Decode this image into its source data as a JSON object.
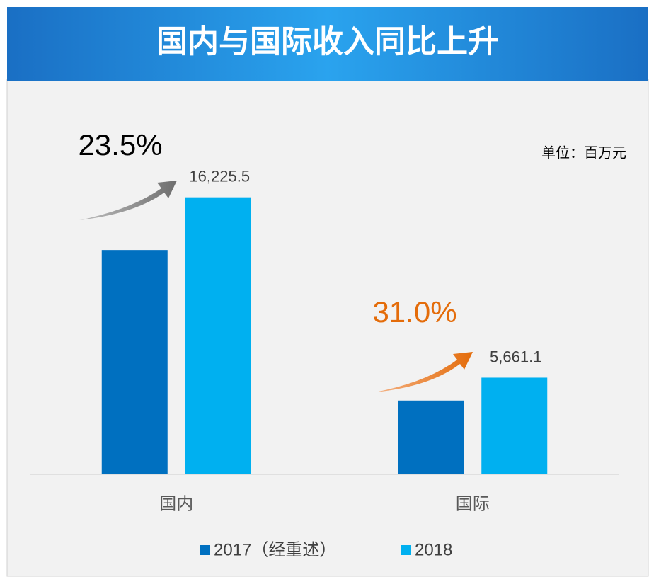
{
  "chart_data": {
    "type": "bar",
    "title": "国内与国际收入同比上升",
    "unit_label": "单位：百万元",
    "categories": [
      "国内",
      "国际"
    ],
    "series": [
      {
        "name": "2017（经重述）",
        "color": "#0070c0",
        "values": [
          13138,
          4321
        ]
      },
      {
        "name": "2018",
        "color": "#00b0f0",
        "values": [
          16225.5,
          5661.1
        ],
        "value_labels": [
          "16,225.5",
          "5,661.1"
        ]
      }
    ],
    "annotations": [
      {
        "text": "23.5%",
        "color": "#000000"
      },
      {
        "text": "31.0%",
        "color": "#e46c0a"
      }
    ],
    "ylim": [
      0,
      17000
    ]
  }
}
